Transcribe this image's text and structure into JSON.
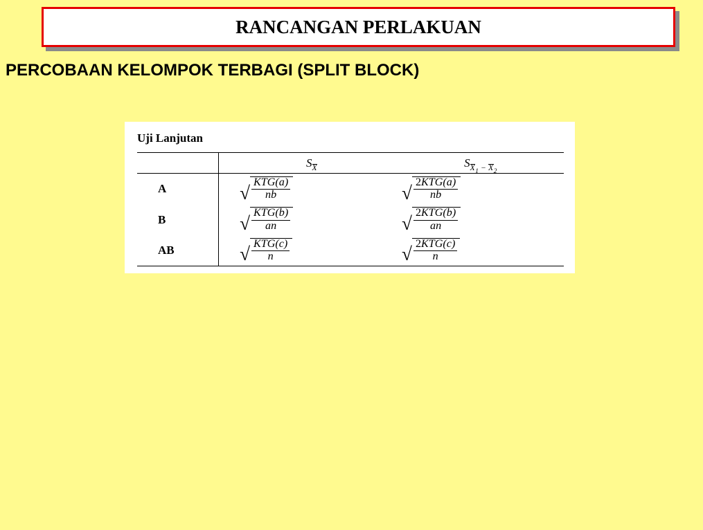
{
  "page": {
    "background_color": "#fffa8f",
    "title_border_color": "#e50000",
    "title_shadow_color": "#8a8a8a",
    "content_bg": "#ffffff"
  },
  "title": "RANCANGAN PERLAKUAN",
  "subtitle": "PERCOBAAN KELOMPOK TERBAGI (SPLIT BLOCK)",
  "section_heading": "Uji Lanjutan",
  "table": {
    "col_headers": {
      "sx": {
        "S": "S",
        "X": "X"
      },
      "sdiff": {
        "S": "S",
        "X1": "X",
        "sub1": "1",
        "X2": "X",
        "sub2": "2"
      }
    },
    "rows": [
      {
        "label": "A",
        "sx": {
          "num_prefix": "",
          "num": "KTG(a)",
          "den": "nb"
        },
        "sdiff": {
          "num_prefix": "2",
          "num": "KTG(a)",
          "den": "nb"
        }
      },
      {
        "label": "B",
        "sx": {
          "num_prefix": "",
          "num": "KTG(b)",
          "den": "an"
        },
        "sdiff": {
          "num_prefix": "2",
          "num": "KTG(b)",
          "den": "an"
        }
      },
      {
        "label": "AB",
        "sx": {
          "num_prefix": "",
          "num": "KTG(c)",
          "den": "n"
        },
        "sdiff": {
          "num_prefix": "2",
          "num": "KTG(c)",
          "den": "n"
        }
      }
    ]
  }
}
